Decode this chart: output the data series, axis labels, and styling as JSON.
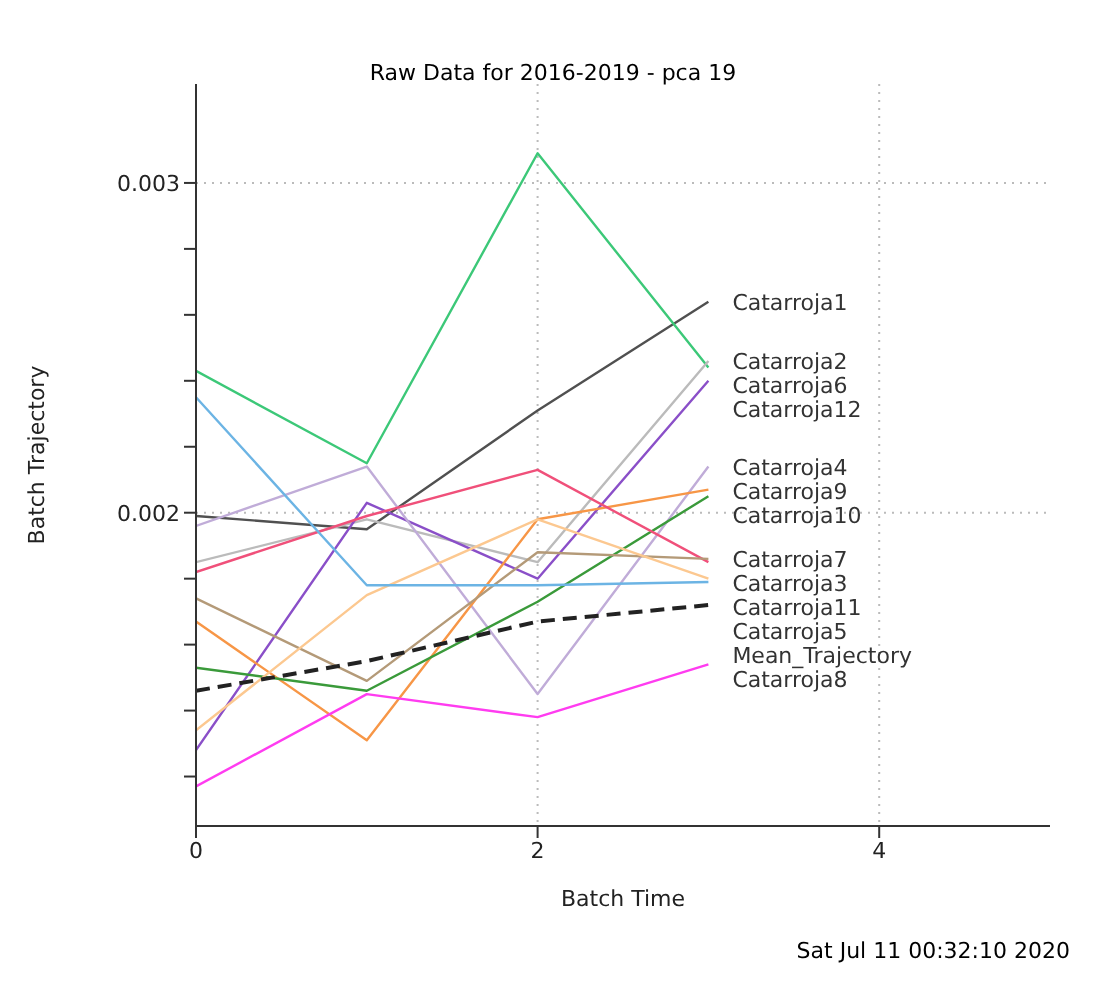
{
  "chart_data": {
    "type": "line",
    "title": "Raw Data for 2016-2019 - pca 19",
    "xlabel": "Batch Time",
    "ylabel": "Batch Trajectory",
    "x": [
      0,
      1,
      2,
      3
    ],
    "xlim": [
      0,
      5
    ],
    "xticks": [
      0,
      2,
      4
    ],
    "ylim": [
      0.00105,
      0.0033
    ],
    "yticks": [
      {
        "value": 0.0012,
        "label": null
      },
      {
        "value": 0.0014,
        "label": null
      },
      {
        "value": 0.0016,
        "label": null
      },
      {
        "value": 0.0018,
        "label": null
      },
      0.002,
      {
        "value": 0.0022,
        "label": null
      },
      {
        "value": 0.0024,
        "label": null
      },
      {
        "value": 0.0026,
        "label": null
      },
      {
        "value": 0.0028,
        "label": null
      },
      0.003
    ],
    "grid": true,
    "marker": "none",
    "line_style": "solid",
    "series": [
      {
        "name": "Catarroja1",
        "color": "#505050",
        "values": [
          0.00199,
          0.00195,
          0.00231,
          0.00264
        ]
      },
      {
        "name": "Catarroja6",
        "color": "#3cc878",
        "values": [
          0.00243,
          0.00215,
          0.00309,
          0.00244
        ]
      },
      {
        "name": "Catarroja2",
        "color": "#bbbbbb",
        "values": [
          0.00185,
          0.00198,
          0.00185,
          0.00246
        ]
      },
      {
        "name": "Catarroja12",
        "color": "#8a4fc8",
        "values": [
          0.00128,
          0.00203,
          0.0018,
          0.0024
        ]
      },
      {
        "name": "Catarroja4",
        "color": "#c0acd8",
        "values": [
          0.00196,
          0.00214,
          0.00145,
          0.00214
        ]
      },
      {
        "name": "Catarroja9",
        "color": "#f79646",
        "values": [
          0.00167,
          0.00131,
          0.00198,
          0.00207
        ]
      },
      {
        "name": "Catarroja10",
        "color": "#3a9a3a",
        "values": [
          0.00153,
          0.00146,
          0.00173,
          0.00205
        ]
      },
      {
        "name": "Catarroja3",
        "color": "#f0507a",
        "values": [
          0.00182,
          0.00199,
          0.00213,
          0.00185
        ]
      },
      {
        "name": "Catarroja7",
        "color": "#b49a78",
        "values": [
          0.00174,
          0.00149,
          0.00188,
          0.00186
        ]
      },
      {
        "name": "Catarroja11",
        "color": "#fcc890",
        "values": [
          0.00134,
          0.00175,
          0.00198,
          0.0018
        ]
      },
      {
        "name": "Catarroja5",
        "color": "#6cb4e4",
        "values": [
          0.00235,
          0.00178,
          0.00178,
          0.00179
        ]
      },
      {
        "name": "Mean_Trajectory",
        "color": "#222222",
        "line_style": "dashed",
        "values": [
          0.00146,
          0.00155,
          0.00167,
          0.00172
        ]
      },
      {
        "name": "Catarroja8",
        "color": "#ff3cf0",
        "values": [
          0.00117,
          0.00145,
          0.00138,
          0.00154
        ]
      }
    ],
    "annotations": [
      "Sat Jul 11 00:32:10 2020"
    ]
  }
}
